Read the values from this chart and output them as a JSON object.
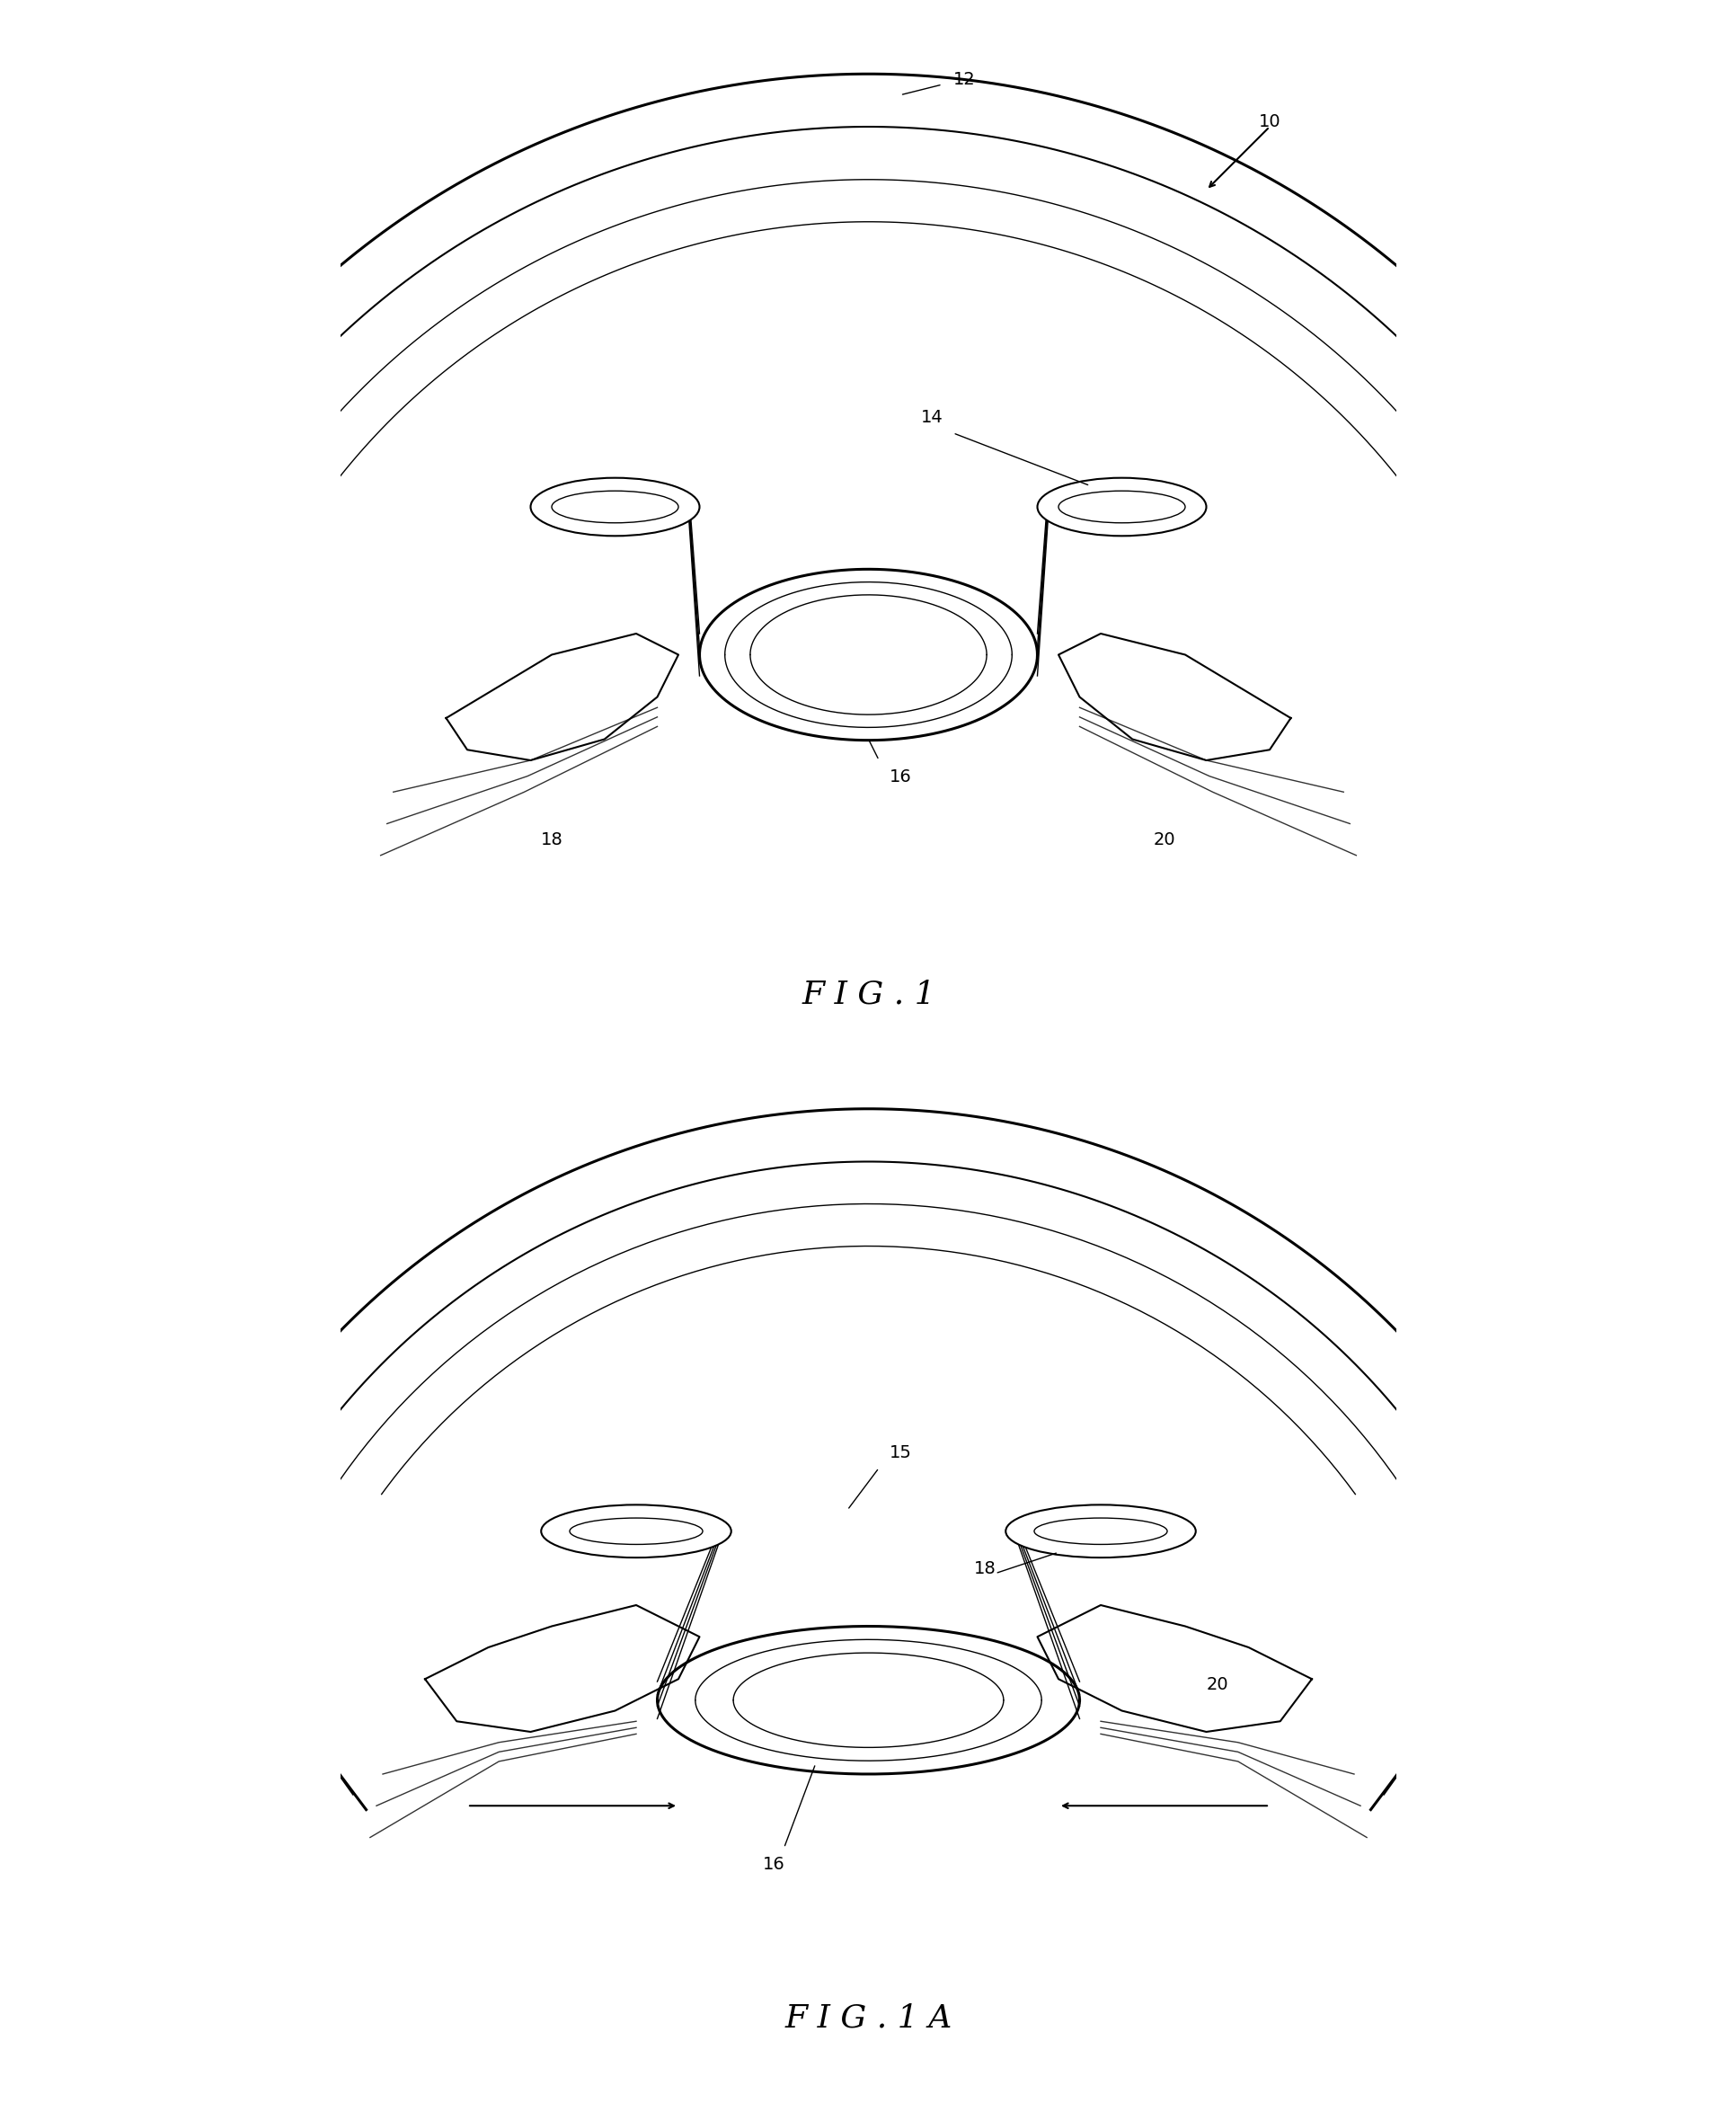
{
  "bg_color": "#ffffff",
  "line_color": "#000000",
  "fig_width": 19.33,
  "fig_height": 23.5,
  "fig1_label": "F I G . 1",
  "fig1a_label": "F I G . 1 A",
  "label_10": "10",
  "label_12": "12",
  "label_14": "14",
  "label_15": "15",
  "label_16": "16",
  "label_18": "18",
  "label_20": "20",
  "label_18b": "18",
  "label_20b": "20",
  "label_16b": "16"
}
